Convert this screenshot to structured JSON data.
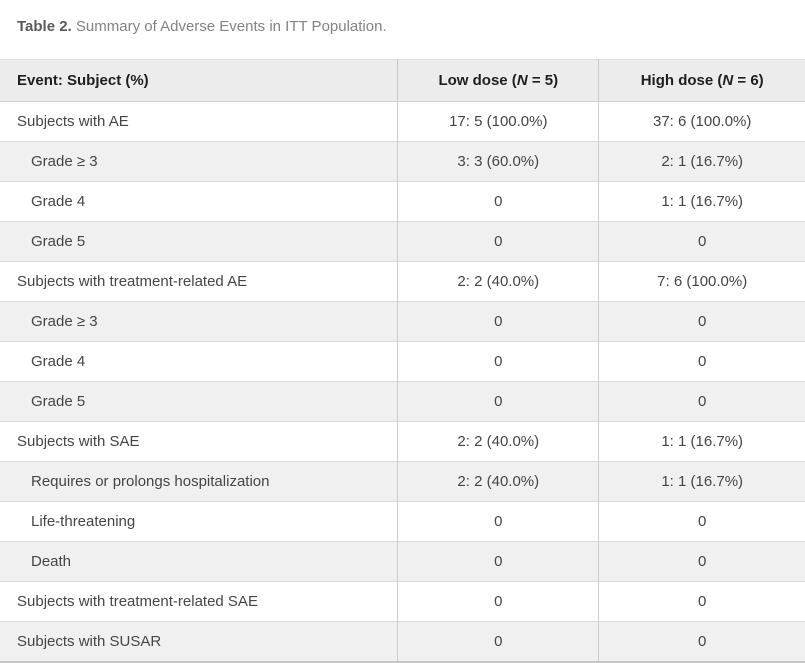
{
  "caption": {
    "label": "Table 2.",
    "text": " Summary of Adverse Events in ITT Population."
  },
  "table": {
    "header": {
      "event_col": "Event: Subject (%)",
      "low_dose": {
        "prefix": "Low dose (",
        "n": "N",
        "suffix": " = 5)"
      },
      "high_dose": {
        "prefix": "High dose (",
        "n": "N",
        "suffix": " = 6)"
      }
    },
    "rows": [
      {
        "label": "Subjects with AE",
        "indent": false,
        "low": "17: 5 (100.0%)",
        "high": "37: 6 (100.0%)"
      },
      {
        "label": "Grade ≥ 3",
        "indent": true,
        "low": "3: 3 (60.0%)",
        "high": "2: 1 (16.7%)"
      },
      {
        "label": "Grade 4",
        "indent": true,
        "low": "0",
        "high": "1: 1 (16.7%)"
      },
      {
        "label": "Grade 5",
        "indent": true,
        "low": "0",
        "high": "0"
      },
      {
        "label": "Subjects with treatment-related AE",
        "indent": false,
        "low": "2: 2 (40.0%)",
        "high": "7: 6 (100.0%)"
      },
      {
        "label": "Grade ≥ 3",
        "indent": true,
        "low": "0",
        "high": "0"
      },
      {
        "label": "Grade 4",
        "indent": true,
        "low": "0",
        "high": "0"
      },
      {
        "label": "Grade 5",
        "indent": true,
        "low": "0",
        "high": "0"
      },
      {
        "label": "Subjects with SAE",
        "indent": false,
        "low": "2: 2 (40.0%)",
        "high": "1: 1 (16.7%)"
      },
      {
        "label": "Requires or prolongs hospitalization",
        "indent": true,
        "low": "2: 2 (40.0%)",
        "high": "1: 1 (16.7%)"
      },
      {
        "label": "Life-threatening",
        "indent": true,
        "low": "0",
        "high": "0"
      },
      {
        "label": "Death",
        "indent": true,
        "low": "0",
        "high": "0"
      },
      {
        "label": "Subjects with treatment-related SAE",
        "indent": false,
        "low": "0",
        "high": "0"
      },
      {
        "label": "Subjects with SUSAR",
        "indent": false,
        "low": "0",
        "high": "0"
      }
    ]
  },
  "colors": {
    "header_bg": "#ececec",
    "zebra_row_bg": "#f0f0f0",
    "row_border": "#dbdbdb",
    "column_divider": "#cccccc",
    "table_bottom_border": "#c6c6c6",
    "header_text": "#1f1f22",
    "body_text": "#454548",
    "caption_label_text": "#59595c",
    "caption_text": "#818386"
  }
}
